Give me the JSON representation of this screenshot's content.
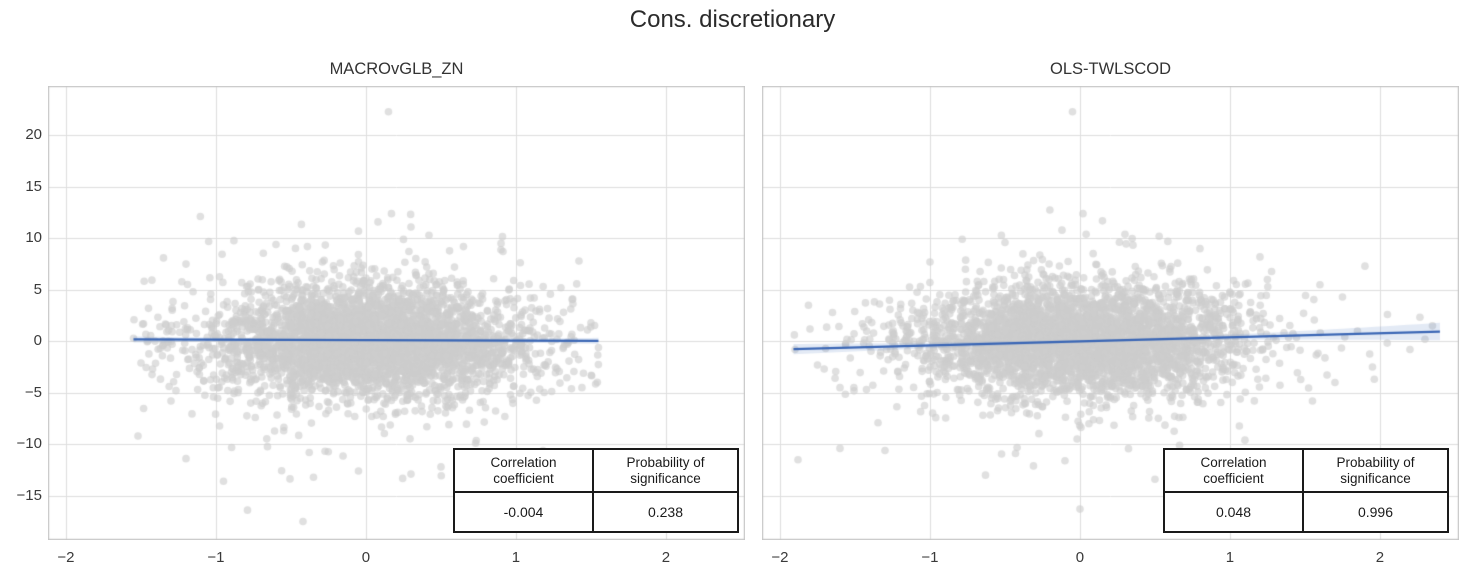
{
  "figure": {
    "title": "Cons. discretionary",
    "colors": {
      "background": "#ffffff",
      "gridline": "#dedede",
      "spine": "#c6c6c6",
      "scatter_point": "rgba(205,205,205,0.62)",
      "regression_line": "#3a66b5",
      "confidence_band": "rgba(90,130,195,0.17)",
      "title_text": "#2b2b2b",
      "tick_text": "#3a3a3a",
      "table_border": "#1a1a1a"
    }
  },
  "chart_data": [
    {
      "type": "scatter",
      "title": "MACROvGLB_ZN",
      "xlabel": "",
      "ylabel": "",
      "xlim": [
        -2.12,
        2.527
      ],
      "ylim": [
        -19.3,
        24.8
      ],
      "xticks": [
        -2,
        -1,
        0,
        1,
        2
      ],
      "yticks": [
        20,
        15,
        10,
        5,
        0,
        -5,
        -10,
        -15
      ],
      "grid": true,
      "points_summary": {
        "n": 3600,
        "seed": 20231,
        "x_mean": 0,
        "x_std": 0.55,
        "x_clip": [
          -1.56,
          1.56
        ],
        "x_tail_fraction": 0.0,
        "x_tail_std": 0.0,
        "y_mean": 0,
        "y_std": 2.7,
        "y_clip": [
          -13.5,
          13
        ],
        "y_tail_fraction": 0.07,
        "y_tail_std": 5.2
      },
      "outliers": [
        [
          0.15,
          22.3
        ],
        [
          0.17,
          12.4
        ],
        [
          0.08,
          11.6
        ],
        [
          0.3,
          11.1
        ],
        [
          -0.05,
          10.7
        ],
        [
          0.42,
          10.3
        ],
        [
          0.25,
          9.9
        ],
        [
          -0.6,
          9.4
        ],
        [
          0.9,
          8.9
        ],
        [
          -1.35,
          8.1
        ],
        [
          1.42,
          7.8
        ],
        [
          -1.2,
          7.5
        ],
        [
          0.65,
          9.2
        ],
        [
          -0.79,
          -16.4
        ],
        [
          -0.42,
          -17.5
        ],
        [
          -0.95,
          -13.6
        ],
        [
          -0.35,
          -13.2
        ],
        [
          0.3,
          -12.9
        ],
        [
          -1.52,
          -9.2
        ],
        [
          -1.2,
          -11.4
        ],
        [
          0.75,
          -11.6
        ],
        [
          1.18,
          -10.6
        ],
        [
          0.5,
          -12.2
        ],
        [
          -0.05,
          -12.6
        ],
        [
          -1.55,
          0.3
        ],
        [
          -1.5,
          -2.1
        ],
        [
          -1.45,
          3.2
        ],
        [
          1.5,
          1.8
        ],
        [
          1.55,
          -0.6
        ],
        [
          1.45,
          -3.1
        ],
        [
          1.3,
          5.2
        ],
        [
          -1.3,
          -5.8
        ]
      ],
      "regression": {
        "x": [
          -1.55,
          1.55
        ],
        "y": [
          0.18,
          0.04
        ],
        "ci_end": [
          0.3,
          0.3
        ],
        "ci_mid": 0.1
      },
      "stats_table": {
        "headers": [
          "Correlation coefficient",
          "Probability of significance"
        ],
        "values": [
          "-0.004",
          "0.238"
        ]
      }
    },
    {
      "type": "scatter",
      "title": "OLS-TWLSCOD",
      "xlabel": "",
      "ylabel": "",
      "xlim": [
        -2.12,
        2.527
      ],
      "ylim": [
        -19.3,
        24.8
      ],
      "xticks": [
        -2,
        -1,
        0,
        1,
        2
      ],
      "yticks": [
        20,
        15,
        10,
        5,
        0,
        -5,
        -10,
        -15
      ],
      "grid": true,
      "points_summary": {
        "n": 3600,
        "seed": 77041,
        "x_mean": 0,
        "x_std": 0.55,
        "x_clip": [
          -1.91,
          2.4
        ],
        "x_tail_fraction": 0.03,
        "x_tail_std": 1.0,
        "y_mean": 0,
        "y_std": 2.7,
        "y_clip": [
          -13.5,
          13
        ],
        "y_tail_fraction": 0.07,
        "y_tail_std": 5.2
      },
      "outliers": [
        [
          -0.05,
          22.3
        ],
        [
          0.02,
          12.4
        ],
        [
          0.15,
          11.7
        ],
        [
          -0.12,
          10.8
        ],
        [
          0.3,
          10.4
        ],
        [
          -0.5,
          9.6
        ],
        [
          0.8,
          9.0
        ],
        [
          1.9,
          7.3
        ],
        [
          1.2,
          8.2
        ],
        [
          -1.0,
          7.7
        ],
        [
          -1.88,
          -11.5
        ],
        [
          -1.6,
          -10.4
        ],
        [
          -1.3,
          -10.6
        ],
        [
          -0.43,
          -10.9
        ],
        [
          -0.31,
          -12.1
        ],
        [
          -0.1,
          -11.6
        ],
        [
          0.0,
          -16.3
        ],
        [
          0.5,
          -13.4
        ],
        [
          1.1,
          -9.6
        ],
        [
          -1.02,
          -5.1
        ],
        [
          2.35,
          1.5
        ],
        [
          2.2,
          -0.8
        ],
        [
          2.05,
          2.6
        ],
        [
          1.95,
          -2.5
        ],
        [
          1.75,
          4.3
        ],
        [
          1.7,
          -4.0
        ],
        [
          2.3,
          0.2
        ],
        [
          1.85,
          1.0
        ],
        [
          1.6,
          5.5
        ],
        [
          1.55,
          -5.8
        ],
        [
          -1.9,
          -0.8
        ],
        [
          -1.8,
          1.2
        ],
        [
          -1.75,
          -2.3
        ],
        [
          -1.65,
          2.8
        ],
        [
          -1.6,
          -4.5
        ]
      ],
      "regression": {
        "x": [
          -1.91,
          2.4
        ],
        "y": [
          -0.76,
          0.95
        ],
        "ci_end": [
          0.5,
          0.85
        ],
        "ci_mid": 0.12
      },
      "stats_table": {
        "headers": [
          "Correlation coefficient",
          "Probability of significance"
        ],
        "values": [
          "0.048",
          "0.996"
        ]
      }
    }
  ]
}
